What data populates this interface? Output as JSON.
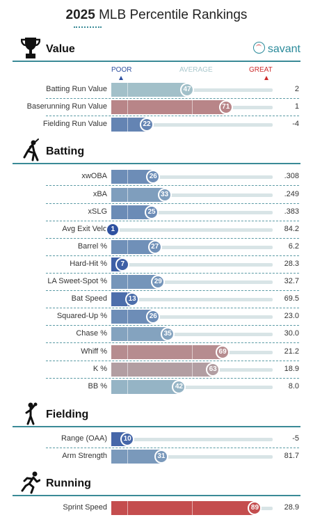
{
  "title": {
    "bold": "2025",
    "rest": " MLB Percentile Rankings"
  },
  "brand": "savant",
  "scale": {
    "poor": "POOR",
    "average": "AVERAGE",
    "great": "GREAT"
  },
  "colors": {
    "accent": "#3a8a96",
    "poor": "#2d4fa0",
    "great": "#cc2b2b",
    "average": "#a9c7cc"
  },
  "sections": [
    {
      "key": "value",
      "label": "Value",
      "icon": "trophy-icon",
      "rows": [
        {
          "label": "Batting Run Value",
          "pct": 47,
          "value": "2"
        },
        {
          "label": "Baserunning Run Value",
          "pct": 71,
          "value": "1"
        },
        {
          "label": "Fielding Run Value",
          "pct": 22,
          "value": "-4"
        }
      ]
    },
    {
      "key": "batting",
      "label": "Batting",
      "icon": "batter-icon",
      "rows": [
        {
          "label": "xwOBA",
          "pct": 26,
          "value": ".308"
        },
        {
          "label": "xBA",
          "pct": 33,
          "value": ".249"
        },
        {
          "label": "xSLG",
          "pct": 25,
          "value": ".383"
        },
        {
          "label": "Avg Exit Velo",
          "pct": 1,
          "value": "84.2"
        },
        {
          "label": "Barrel %",
          "pct": 27,
          "value": "6.2"
        },
        {
          "label": "Hard-Hit %",
          "pct": 7,
          "value": "28.3"
        },
        {
          "label": "LA Sweet-Spot %",
          "pct": 29,
          "value": "32.7"
        },
        {
          "label": "Bat Speed",
          "pct": 13,
          "value": "69.5"
        },
        {
          "label": "Squared-Up %",
          "pct": 26,
          "value": "23.0"
        },
        {
          "label": "Chase %",
          "pct": 35,
          "value": "30.0"
        },
        {
          "label": "Whiff %",
          "pct": 69,
          "value": "21.2"
        },
        {
          "label": "K %",
          "pct": 63,
          "value": "18.9"
        },
        {
          "label": "BB %",
          "pct": 42,
          "value": "8.0"
        }
      ]
    },
    {
      "key": "fielding",
      "label": "Fielding",
      "icon": "fielder-icon",
      "rows": [
        {
          "label": "Range (OAA)",
          "pct": 10,
          "value": "-5"
        },
        {
          "label": "Arm Strength",
          "pct": 31,
          "value": "81.7"
        }
      ]
    },
    {
      "key": "running",
      "label": "Running",
      "icon": "runner-icon",
      "rows": [
        {
          "label": "Sprint Speed",
          "pct": 89,
          "value": "28.9"
        }
      ]
    }
  ]
}
